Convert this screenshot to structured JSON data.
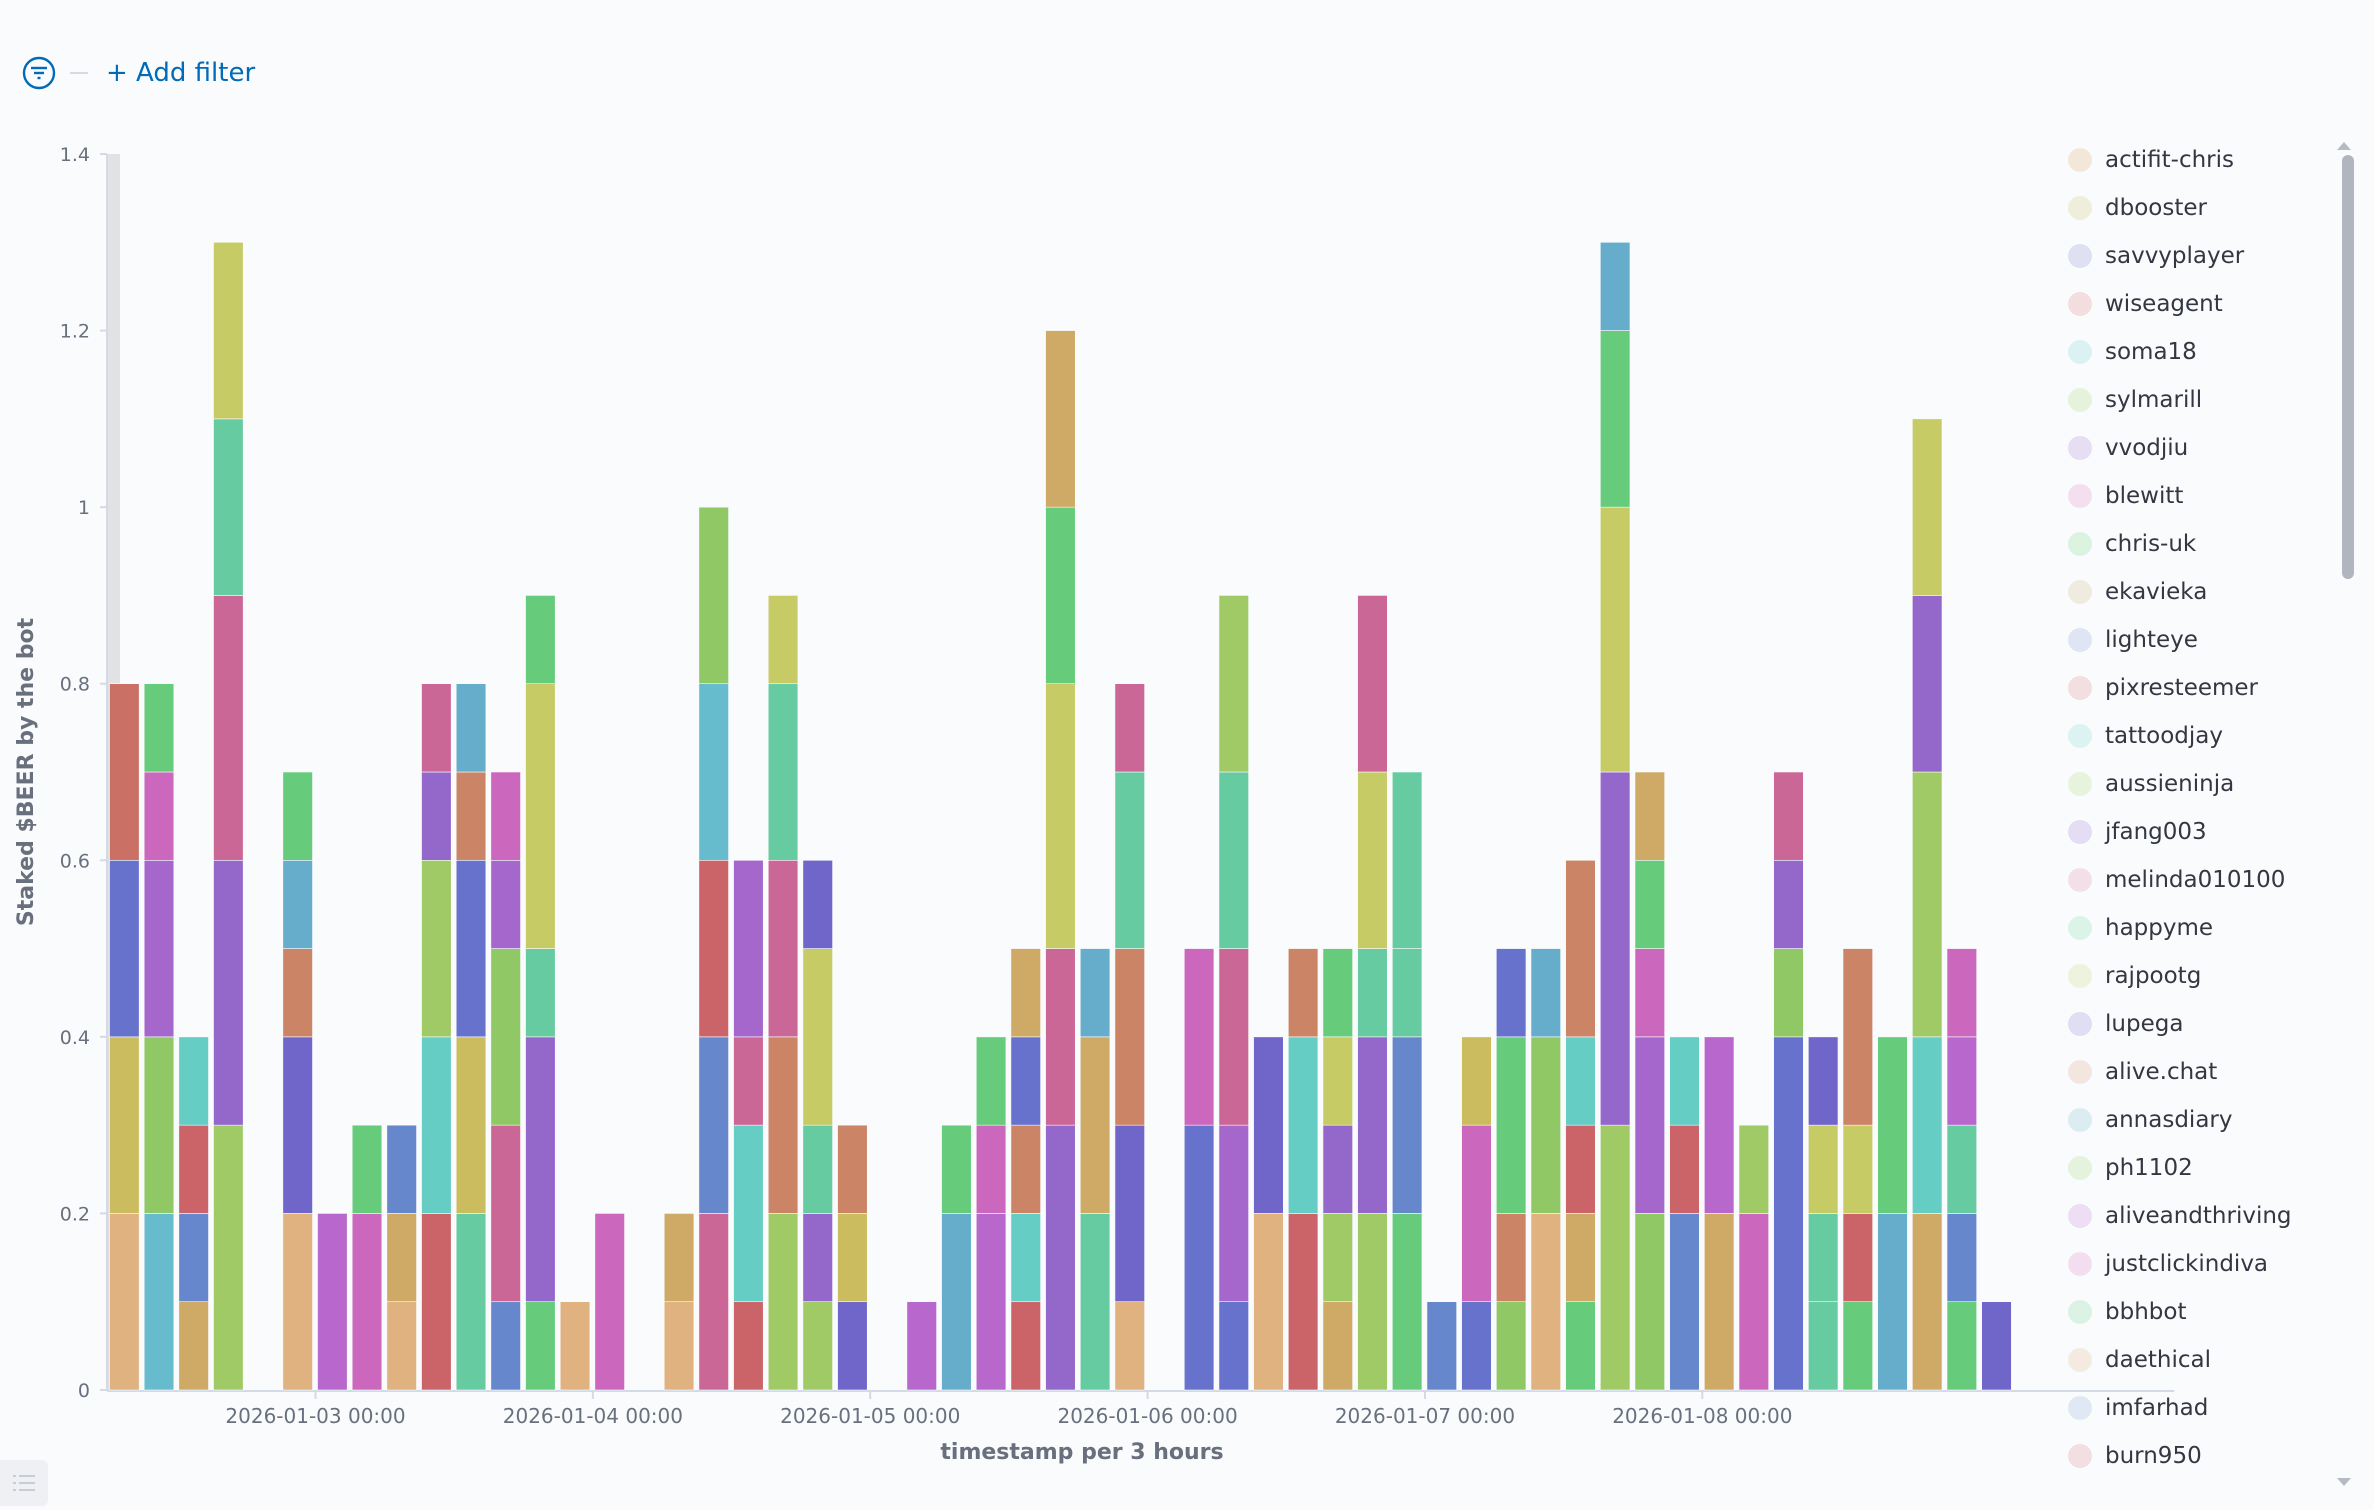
{
  "filter_bar": {
    "add_filter_label": "+ Add filter",
    "icon": "filter-icon"
  },
  "colors": {
    "peach": "#e0b27f",
    "olive": "#cbbc5f",
    "indigo": "#6672cb",
    "red": "#cb7064",
    "cyan": "#66bccd",
    "lime": "#8fc865",
    "purple": "#a667cd",
    "magenta": "#cb67bc",
    "green": "#66cb7a",
    "tan": "#ceaa66",
    "blue": "#6687cb",
    "red2": "#cb6469",
    "teal": "#66cdc4",
    "lime2": "#a0ca66",
    "purple2": "#9467cb",
    "pink": "#cb6796",
    "tealgreen": "#66cba0",
    "yellow": "#c6cb66",
    "indigo2": "#7066c9",
    "orange": "#cb8466",
    "sky": "#66adcb",
    "violet": "#b867cd"
  },
  "chart_data": {
    "type": "bar",
    "stacked": true,
    "xlabel": "timestamp per 3 hours",
    "ylabel": "Staked $BEER by the bot",
    "ylim": [
      0,
      1.4
    ],
    "yticks": [
      "0",
      "0.2",
      "0.4",
      "0.6",
      "0.8",
      "1",
      "1.2",
      "1.4"
    ],
    "xticks": [
      {
        "label": "2026-01-03 00:00",
        "bucket": 6
      },
      {
        "label": "2026-01-04 00:00",
        "bucket": 14
      },
      {
        "label": "2026-01-05 00:00",
        "bucket": 22
      },
      {
        "label": "2026-01-06 00:00",
        "bucket": 30
      },
      {
        "label": "2026-01-07 00:00",
        "bucket": 38
      },
      {
        "label": "2026-01-08 00:00",
        "bucket": 46
      }
    ],
    "grid": false,
    "legend_position": "right",
    "bars": [
      {
        "x": "2026-01-02 06:00",
        "segments": [
          [
            0.2,
            "peach"
          ],
          [
            0.2,
            "olive"
          ],
          [
            0.2,
            "indigo"
          ],
          [
            0.2,
            "red"
          ]
        ]
      },
      {
        "x": "2026-01-02 09:00",
        "segments": [
          [
            0.2,
            "cyan"
          ],
          [
            0.2,
            "lime"
          ],
          [
            0.2,
            "purple"
          ],
          [
            0.1,
            "magenta"
          ],
          [
            0.1,
            "green"
          ]
        ]
      },
      {
        "x": "2026-01-02 12:00",
        "segments": [
          [
            0.1,
            "tan"
          ],
          [
            0.1,
            "blue"
          ],
          [
            0.1,
            "red2"
          ],
          [
            0.1,
            "teal"
          ]
        ]
      },
      {
        "x": "2026-01-02 15:00",
        "segments": [
          [
            0.3,
            "lime2"
          ],
          [
            0.3,
            "purple2"
          ],
          [
            0.3,
            "pink"
          ],
          [
            0.2,
            "tealgreen"
          ],
          [
            0.2,
            "yellow"
          ]
        ]
      },
      {
        "x": "2026-01-02 18:00",
        "segments": []
      },
      {
        "x": "2026-01-02 21:00",
        "segments": [
          [
            0.2,
            "peach"
          ],
          [
            0.2,
            "indigo2"
          ],
          [
            0.1,
            "orange"
          ],
          [
            0.1,
            "sky"
          ],
          [
            0.1,
            "green"
          ]
        ]
      },
      {
        "x": "2026-01-03 00:00",
        "segments": [
          [
            0.2,
            "violet"
          ]
        ]
      },
      {
        "x": "2026-01-03 03:00",
        "segments": [
          [
            0.2,
            "magenta"
          ],
          [
            0.1,
            "green"
          ]
        ]
      },
      {
        "x": "2026-01-03 06:00",
        "segments": [
          [
            0.1,
            "peach"
          ],
          [
            0.1,
            "tan"
          ],
          [
            0.1,
            "blue"
          ]
        ]
      },
      {
        "x": "2026-01-03 09:00",
        "segments": [
          [
            0.2,
            "red2"
          ],
          [
            0.2,
            "teal"
          ],
          [
            0.2,
            "lime2"
          ],
          [
            0.1,
            "purple2"
          ],
          [
            0.1,
            "pink"
          ]
        ]
      },
      {
        "x": "2026-01-03 12:00",
        "segments": [
          [
            0.2,
            "tealgreen"
          ],
          [
            0.2,
            "olive"
          ],
          [
            0.2,
            "indigo"
          ],
          [
            0.1,
            "orange"
          ],
          [
            0.1,
            "sky"
          ]
        ]
      },
      {
        "x": "2026-01-03 15:00",
        "segments": [
          [
            0.1,
            "blue"
          ],
          [
            0.2,
            "pink"
          ],
          [
            0.2,
            "lime"
          ],
          [
            0.1,
            "purple"
          ],
          [
            0.1,
            "magenta"
          ]
        ]
      },
      {
        "x": "2026-01-03 18:00",
        "segments": [
          [
            0.1,
            "green"
          ],
          [
            0.3,
            "purple2"
          ],
          [
            0.1,
            "tealgreen"
          ],
          [
            0.3,
            "yellow"
          ],
          [
            0.1,
            "green"
          ]
        ]
      },
      {
        "x": "2026-01-03 21:00",
        "segments": [
          [
            0.1,
            "peach"
          ]
        ]
      },
      {
        "x": "2026-01-04 00:00",
        "segments": [
          [
            0.2,
            "magenta"
          ]
        ]
      },
      {
        "x": "2026-01-04 03:00",
        "segments": []
      },
      {
        "x": "2026-01-04 06:00",
        "segments": [
          [
            0.1,
            "peach"
          ],
          [
            0.1,
            "tan"
          ]
        ]
      },
      {
        "x": "2026-01-04 09:00",
        "segments": [
          [
            0.2,
            "pink"
          ],
          [
            0.2,
            "blue"
          ],
          [
            0.2,
            "red2"
          ],
          [
            0.2,
            "cyan"
          ],
          [
            0.2,
            "lime"
          ]
        ]
      },
      {
        "x": "2026-01-04 12:00",
        "segments": [
          [
            0.1,
            "red2"
          ],
          [
            0.2,
            "teal"
          ],
          [
            0.1,
            "pink"
          ],
          [
            0.2,
            "purple"
          ]
        ]
      },
      {
        "x": "2026-01-04 15:00",
        "segments": [
          [
            0.2,
            "lime2"
          ],
          [
            0.2,
            "orange"
          ],
          [
            0.2,
            "pink"
          ],
          [
            0.2,
            "tealgreen"
          ],
          [
            0.1,
            "yellow"
          ]
        ]
      },
      {
        "x": "2026-01-04 18:00",
        "segments": [
          [
            0.1,
            "lime2"
          ],
          [
            0.1,
            "purple2"
          ],
          [
            0.1,
            "tealgreen"
          ],
          [
            0.2,
            "yellow"
          ],
          [
            0.1,
            "indigo2"
          ]
        ]
      },
      {
        "x": "2026-01-04 21:00",
        "segments": [
          [
            0.1,
            "indigo2"
          ],
          [
            0.1,
            "olive"
          ],
          [
            0.1,
            "orange"
          ]
        ]
      },
      {
        "x": "2026-01-05 00:00",
        "segments": []
      },
      {
        "x": "2026-01-05 03:00",
        "segments": [
          [
            0.1,
            "violet"
          ]
        ]
      },
      {
        "x": "2026-01-05 06:00",
        "segments": [
          [
            0.2,
            "sky"
          ],
          [
            0.1,
            "green"
          ]
        ]
      },
      {
        "x": "2026-01-05 09:00",
        "segments": [
          [
            0.2,
            "violet"
          ],
          [
            0.1,
            "magenta"
          ],
          [
            0.1,
            "green"
          ]
        ]
      },
      {
        "x": "2026-01-05 12:00",
        "segments": [
          [
            0.1,
            "red2"
          ],
          [
            0.1,
            "teal"
          ],
          [
            0.1,
            "orange"
          ],
          [
            0.1,
            "indigo"
          ],
          [
            0.1,
            "tan"
          ]
        ]
      },
      {
        "x": "2026-01-05 15:00",
        "segments": [
          [
            0.3,
            "purple2"
          ],
          [
            0.2,
            "pink"
          ],
          [
            0.3,
            "yellow"
          ],
          [
            0.2,
            "green"
          ],
          [
            0.2,
            "tan"
          ]
        ]
      },
      {
        "x": "2026-01-05 18:00",
        "segments": [
          [
            0.2,
            "tealgreen"
          ],
          [
            0.2,
            "tan"
          ],
          [
            0.1,
            "sky"
          ]
        ]
      },
      {
        "x": "2026-01-05 21:00",
        "segments": [
          [
            0.1,
            "peach"
          ],
          [
            0.2,
            "indigo2"
          ],
          [
            0.2,
            "orange"
          ],
          [
            0.2,
            "tealgreen"
          ],
          [
            0.1,
            "pink"
          ]
        ]
      },
      {
        "x": "2026-01-06 00:00",
        "segments": []
      },
      {
        "x": "2026-01-06 03:00",
        "segments": [
          [
            0.3,
            "indigo"
          ],
          [
            0.2,
            "magenta"
          ]
        ]
      },
      {
        "x": "2026-01-06 06:00",
        "segments": [
          [
            0.1,
            "indigo"
          ],
          [
            0.2,
            "purple"
          ],
          [
            0.2,
            "pink"
          ],
          [
            0.2,
            "tealgreen"
          ],
          [
            0.2,
            "lime2"
          ]
        ]
      },
      {
        "x": "2026-01-06 09:00",
        "segments": [
          [
            0.2,
            "peach"
          ],
          [
            0.2,
            "indigo2"
          ]
        ]
      },
      {
        "x": "2026-01-06 12:00",
        "segments": [
          [
            0.2,
            "red2"
          ],
          [
            0.2,
            "teal"
          ],
          [
            0.1,
            "orange"
          ]
        ]
      },
      {
        "x": "2026-01-06 15:00",
        "segments": [
          [
            0.1,
            "tan"
          ],
          [
            0.1,
            "lime2"
          ],
          [
            0.1,
            "purple2"
          ],
          [
            0.1,
            "yellow"
          ],
          [
            0.1,
            "green"
          ]
        ]
      },
      {
        "x": "2026-01-06 18:00",
        "segments": [
          [
            0.2,
            "lime2"
          ],
          [
            0.2,
            "purple2"
          ],
          [
            0.1,
            "tealgreen"
          ],
          [
            0.2,
            "yellow"
          ],
          [
            0.2,
            "pink"
          ]
        ]
      },
      {
        "x": "2026-01-06 21:00",
        "segments": [
          [
            0.2,
            "green"
          ],
          [
            0.2,
            "blue"
          ],
          [
            0.1,
            "tealgreen"
          ],
          [
            0.2,
            "tealgreen"
          ]
        ]
      },
      {
        "x": "2026-01-07 00:00",
        "segments": [
          [
            0.1,
            "blue"
          ]
        ]
      },
      {
        "x": "2026-01-07 03:00",
        "segments": [
          [
            0.1,
            "indigo"
          ],
          [
            0.2,
            "magenta"
          ],
          [
            0.1,
            "olive"
          ]
        ]
      },
      {
        "x": "2026-01-07 06:00",
        "segments": [
          [
            0.1,
            "lime"
          ],
          [
            0.1,
            "orange"
          ],
          [
            0.2,
            "green"
          ],
          [
            0.1,
            "indigo"
          ]
        ]
      },
      {
        "x": "2026-01-07 09:00",
        "segments": [
          [
            0.2,
            "peach"
          ],
          [
            0.2,
            "lime"
          ],
          [
            0.1,
            "sky"
          ]
        ]
      },
      {
        "x": "2026-01-07 12:00",
        "segments": [
          [
            0.1,
            "green"
          ],
          [
            0.1,
            "tan"
          ],
          [
            0.1,
            "red2"
          ],
          [
            0.1,
            "teal"
          ],
          [
            0.2,
            "orange"
          ]
        ]
      },
      {
        "x": "2026-01-07 15:00",
        "segments": [
          [
            0.3,
            "lime2"
          ],
          [
            0.4,
            "purple2"
          ],
          [
            0.3,
            "yellow"
          ],
          [
            0.2,
            "green"
          ],
          [
            0.1,
            "sky"
          ]
        ]
      },
      {
        "x": "2026-01-07 18:00",
        "segments": [
          [
            0.2,
            "lime"
          ],
          [
            0.2,
            "purple"
          ],
          [
            0.1,
            "magenta"
          ],
          [
            0.1,
            "green"
          ],
          [
            0.1,
            "tan"
          ]
        ]
      },
      {
        "x": "2026-01-07 21:00",
        "segments": [
          [
            0.2,
            "blue"
          ],
          [
            0.1,
            "red2"
          ],
          [
            0.1,
            "teal"
          ]
        ]
      },
      {
        "x": "2026-01-08 00:00",
        "segments": [
          [
            0.2,
            "tan"
          ],
          [
            0.2,
            "violet"
          ]
        ]
      },
      {
        "x": "2026-01-08 03:00",
        "segments": [
          [
            0.2,
            "magenta"
          ],
          [
            0.1,
            "lime2"
          ]
        ]
      },
      {
        "x": "2026-01-08 06:00",
        "segments": [
          [
            0.4,
            "indigo"
          ],
          [
            0.1,
            "lime"
          ],
          [
            0.1,
            "purple2"
          ],
          [
            0.1,
            "pink"
          ]
        ]
      },
      {
        "x": "2026-01-08 09:00",
        "segments": [
          [
            0.1,
            "tealgreen"
          ],
          [
            0.1,
            "tealgreen"
          ],
          [
            0.1,
            "yellow"
          ],
          [
            0.1,
            "indigo2"
          ]
        ]
      },
      {
        "x": "2026-01-08 12:00",
        "segments": [
          [
            0.1,
            "green"
          ],
          [
            0.1,
            "red2"
          ],
          [
            0.1,
            "yellow"
          ],
          [
            0.2,
            "orange"
          ]
        ]
      },
      {
        "x": "2026-01-08 15:00",
        "segments": [
          [
            0.2,
            "sky"
          ],
          [
            0.2,
            "green"
          ]
        ]
      },
      {
        "x": "2026-01-08 18:00",
        "segments": [
          [
            0.2,
            "tan"
          ],
          [
            0.2,
            "teal"
          ],
          [
            0.3,
            "lime2"
          ],
          [
            0.2,
            "purple2"
          ],
          [
            0.2,
            "yellow"
          ]
        ]
      },
      {
        "x": "2026-01-08 21:00",
        "segments": [
          [
            0.1,
            "green"
          ],
          [
            0.1,
            "blue"
          ],
          [
            0.1,
            "tealgreen"
          ],
          [
            0.1,
            "violet"
          ],
          [
            0.1,
            "magenta"
          ]
        ]
      },
      {
        "x": "2026-01-09 00:00",
        "segments": [
          [
            0.1,
            "indigo2"
          ]
        ]
      }
    ]
  },
  "legend": [
    {
      "label": "actifit-chris",
      "color": "#f3e7da"
    },
    {
      "label": "dbooster",
      "color": "#efeedb"
    },
    {
      "label": "savvyplayer",
      "color": "#dfe1f3"
    },
    {
      "label": "wiseagent",
      "color": "#f3dedd"
    },
    {
      "label": "soma18",
      "color": "#dcf1f2"
    },
    {
      "label": "sylmarill",
      "color": "#e5f3dd"
    },
    {
      "label": "vvodjiu",
      "color": "#e8def3"
    },
    {
      "label": "blewitt",
      "color": "#f3dff0"
    },
    {
      "label": "chris-uk",
      "color": "#dcf3e1"
    },
    {
      "label": "ekavieka",
      "color": "#f1ebdf"
    },
    {
      "label": "lighteye",
      "color": "#dfe5f3"
    },
    {
      "label": "pixresteemer",
      "color": "#f3dfdf"
    },
    {
      "label": "tattoodjay",
      "color": "#dcf3f1"
    },
    {
      "label": "aussieninja",
      "color": "#e8f3dd"
    },
    {
      "label": "jfang003",
      "color": "#e3def3"
    },
    {
      "label": "melinda010100",
      "color": "#f3dfe8"
    },
    {
      "label": "happyme",
      "color": "#dcf3ea"
    },
    {
      "label": "rajpootg",
      "color": "#eff3dd"
    },
    {
      "label": "lupega",
      "color": "#e0def3"
    },
    {
      "label": "alive.chat",
      "color": "#f3e5df"
    },
    {
      "label": "annasdiary",
      "color": "#dcecf3"
    },
    {
      "label": "ph1102",
      "color": "#e3f3dd"
    },
    {
      "label": "aliveandthriving",
      "color": "#eddef3"
    },
    {
      "label": "justclickindiva",
      "color": "#f3def1"
    },
    {
      "label": "bbhbot",
      "color": "#dcf3e3"
    },
    {
      "label": "daethical",
      "color": "#f3ebe0"
    },
    {
      "label": "imfarhad",
      "color": "#dfe9f3"
    },
    {
      "label": "burn950",
      "color": "#f3dfe2"
    }
  ]
}
